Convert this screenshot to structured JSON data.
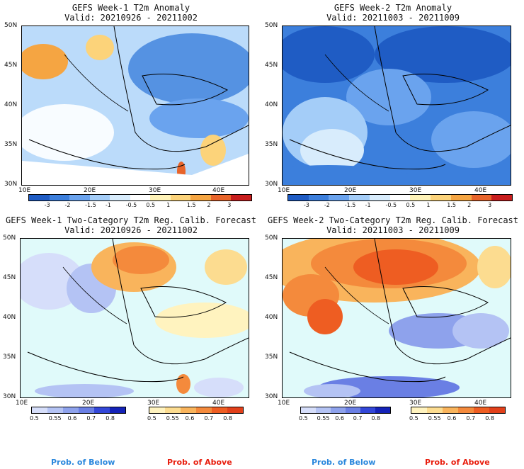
{
  "panels": [
    {
      "title": "GEFS Week-1 T2m Anomaly",
      "valid": "Valid: 20210926 - 20211002"
    },
    {
      "title": "GEFS Week-2 T2m Anomaly",
      "valid": "Valid: 20211003 - 20211009"
    },
    {
      "title": "GEFS Week-1 Two-Category T2m Reg. Calib. Forecast",
      "valid": "Valid: 20210926 - 20211002"
    },
    {
      "title": "GEFS Week-2 Two-Category T2m Reg. Calib. Forecast",
      "valid": "Valid: 20211003 - 20211009"
    }
  ],
  "lat_labels": [
    "50N",
    "45N",
    "40N",
    "35N",
    "30N"
  ],
  "lon_labels": [
    "10E",
    "20E",
    "30E",
    "40E"
  ],
  "anomaly_ticks": [
    "-3",
    "-2",
    "-1.5",
    "-1",
    "-0.5",
    "0.5",
    "1",
    "1.5",
    "2",
    "3"
  ],
  "prob_ticks": [
    "0.5",
    "0.55",
    "0.6",
    "0.7",
    "0.8"
  ],
  "footer": {
    "below": "Prob. of Below",
    "above": "Prob. of Above"
  },
  "colors": {
    "anomaly_scale": [
      "#1f5cc4",
      "#3c7fdc",
      "#6aa3ee",
      "#a4cdf8",
      "#d8ecfc",
      "#ffffff",
      "#fff3b8",
      "#fcd37a",
      "#f5a542",
      "#e8642a",
      "#c81e1e"
    ],
    "below_scale": [
      "#d6defa",
      "#b4c3f4",
      "#8ea2ec",
      "#6a7fe4",
      "#3347d8",
      "#1422b8"
    ],
    "above_scale": [
      "#fff3bf",
      "#fcdc90",
      "#f9b45c",
      "#f48a3c",
      "#ee5d22",
      "#e2401a"
    ],
    "below_text": "#2b88dd",
    "above_text": "#e81e0e",
    "land_neutral": "#ffffff",
    "sea_neutral": "#e0fafa"
  }
}
